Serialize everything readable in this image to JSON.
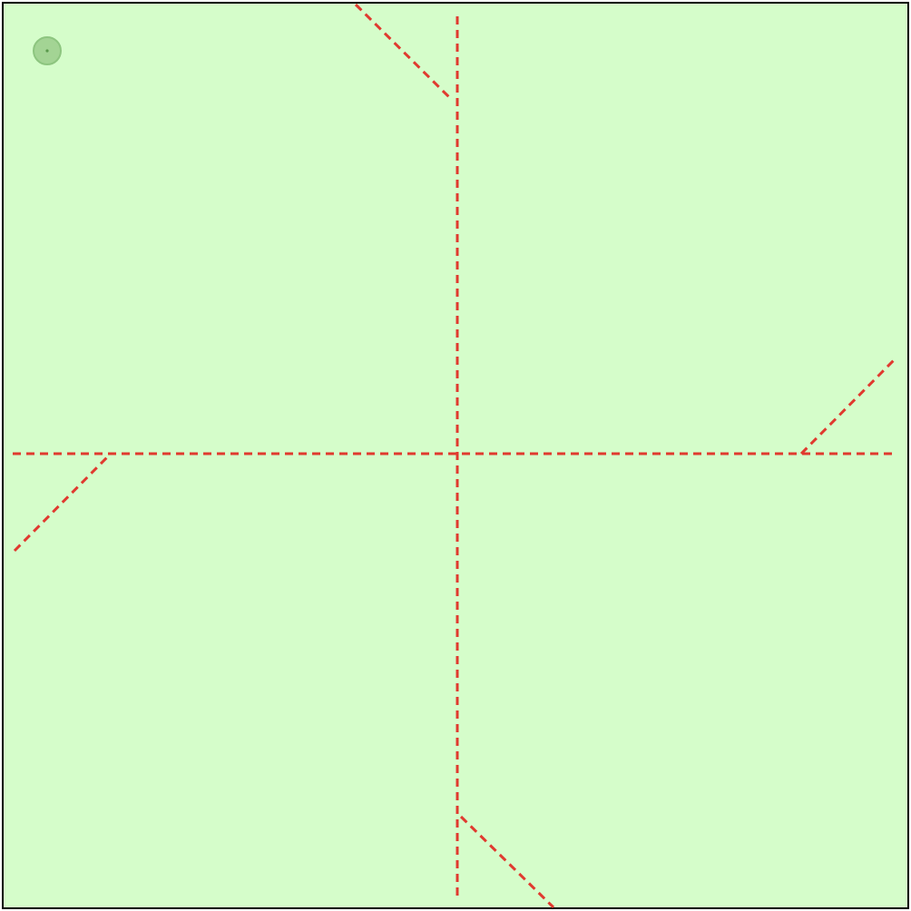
{
  "colors": {
    "background": "#d5fdca",
    "border": "#000000",
    "fold_line": "#e03a2f",
    "marker_fill": "#a3d494",
    "marker_ring": "#8dc57f",
    "marker_dot": "#5a9a4c"
  },
  "marker": {
    "name": "corner-circle-marker",
    "icon": "circle-dot-icon"
  },
  "fold_lines": [
    {
      "name": "vertical-crease-line",
      "style": "dashed"
    },
    {
      "name": "horizontal-crease-line",
      "style": "dashed"
    },
    {
      "name": "top-diagonal-flap-line",
      "style": "dashed"
    },
    {
      "name": "right-diagonal-flap-line",
      "style": "dashed"
    },
    {
      "name": "bottom-diagonal-flap-line",
      "style": "dashed"
    },
    {
      "name": "left-diagonal-flap-line",
      "style": "dashed"
    }
  ]
}
